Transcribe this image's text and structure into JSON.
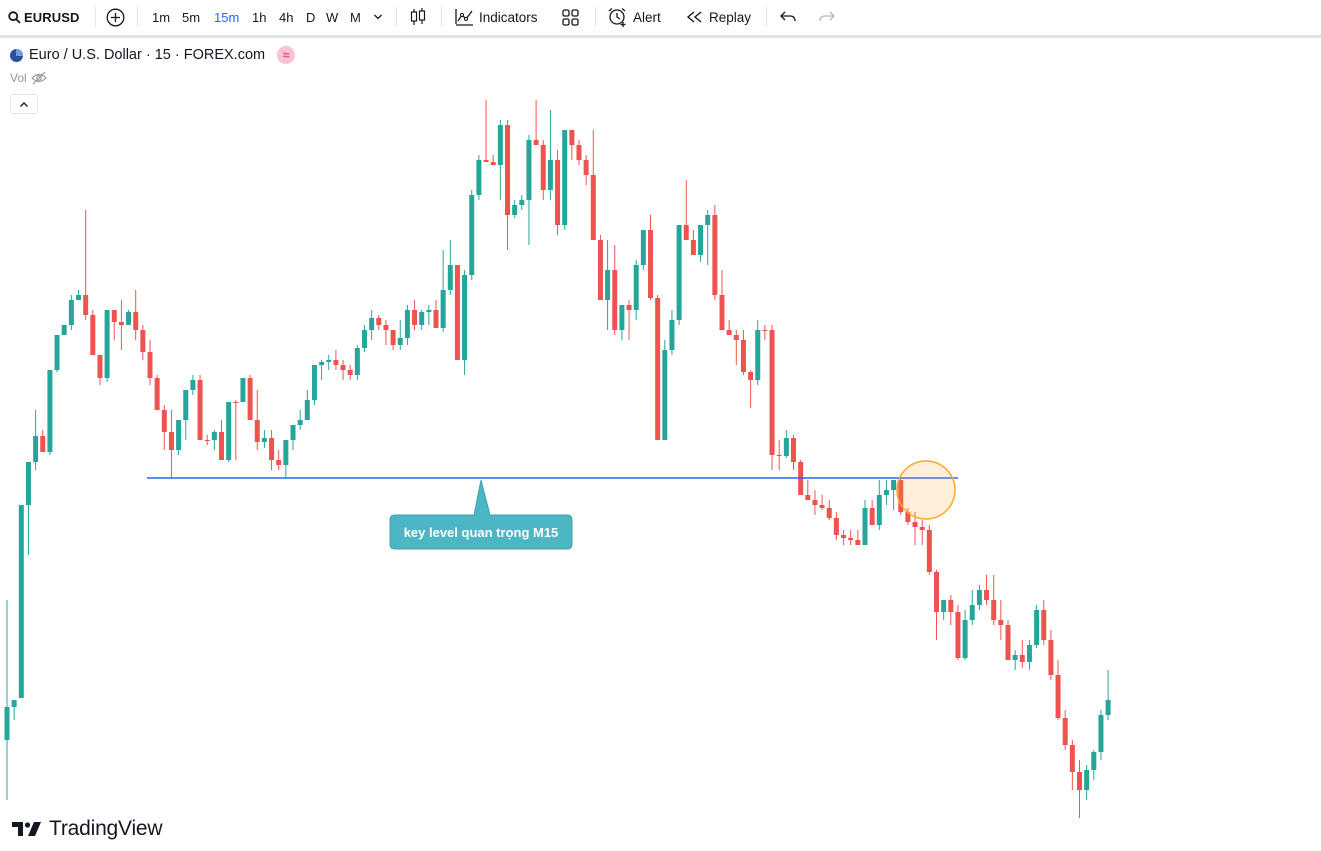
{
  "toolbar": {
    "symbol": "EURUSD",
    "intervals": [
      "1m",
      "5m",
      "15m",
      "1h",
      "4h",
      "D",
      "W",
      "M"
    ],
    "active_interval": "15m",
    "indicators_label": "Indicators",
    "alert_label": "Alert",
    "replay_label": "Replay"
  },
  "legend": {
    "title": "Euro / U.S. Dollar · 15 · FOREX.com",
    "vol_label": "Vol"
  },
  "annotation": {
    "label": "key level quan trọng  M15"
  },
  "branding": {
    "name": "TradingView"
  },
  "colors": {
    "up": "#26a69a",
    "down": "#ef5350",
    "level_line": "#2962ff",
    "callout": "#4db6c4",
    "highlight": "#ffa726",
    "active_interval": "#2962ff"
  },
  "chart_data": {
    "type": "candlestick",
    "key_level": 478,
    "candles": [
      [
        740,
        600,
        800,
        707
      ],
      [
        707,
        700,
        720,
        700
      ],
      [
        698,
        505,
        698,
        505
      ],
      [
        505,
        462,
        555,
        462
      ],
      [
        462,
        410,
        470,
        436
      ],
      [
        436,
        430,
        450,
        452
      ],
      [
        452,
        370,
        455,
        370
      ],
      [
        370,
        335,
        372,
        335
      ],
      [
        335,
        325,
        330,
        325
      ],
      [
        325,
        295,
        330,
        300
      ],
      [
        300,
        290,
        300,
        295
      ],
      [
        295,
        210,
        320,
        315
      ],
      [
        315,
        310,
        350,
        355
      ],
      [
        355,
        360,
        385,
        378
      ],
      [
        378,
        310,
        382,
        310
      ],
      [
        310,
        312,
        340,
        322
      ],
      [
        322,
        300,
        350,
        325
      ],
      [
        325,
        310,
        325,
        312
      ],
      [
        312,
        290,
        340,
        330
      ],
      [
        330,
        325,
        360,
        352
      ],
      [
        352,
        340,
        385,
        378
      ],
      [
        378,
        375,
        410,
        410
      ],
      [
        410,
        405,
        450,
        432
      ],
      [
        432,
        410,
        478,
        450
      ],
      [
        450,
        420,
        455,
        420
      ],
      [
        420,
        400,
        440,
        390
      ],
      [
        390,
        375,
        395,
        380
      ],
      [
        380,
        375,
        440,
        440
      ],
      [
        440,
        435,
        445,
        440
      ],
      [
        440,
        430,
        450,
        432
      ],
      [
        432,
        420,
        452,
        460
      ],
      [
        460,
        440,
        462,
        402
      ],
      [
        402,
        400,
        460,
        402
      ],
      [
        402,
        378,
        402,
        378
      ],
      [
        378,
        375,
        420,
        420
      ],
      [
        420,
        390,
        450,
        442
      ],
      [
        442,
        430,
        448,
        438
      ],
      [
        438,
        430,
        470,
        460
      ],
      [
        460,
        450,
        470,
        465
      ],
      [
        465,
        440,
        478,
        440
      ],
      [
        440,
        425,
        450,
        425
      ],
      [
        425,
        410,
        430,
        420
      ],
      [
        420,
        390,
        420,
        400
      ],
      [
        400,
        365,
        405,
        365
      ],
      [
        365,
        360,
        380,
        362
      ],
      [
        362,
        355,
        370,
        360
      ],
      [
        360,
        350,
        370,
        365
      ],
      [
        365,
        360,
        380,
        370
      ],
      [
        370,
        365,
        380,
        375
      ],
      [
        375,
        345,
        380,
        348
      ],
      [
        348,
        325,
        352,
        330
      ],
      [
        330,
        310,
        340,
        318
      ],
      [
        318,
        315,
        330,
        325
      ],
      [
        325,
        320,
        345,
        330
      ],
      [
        330,
        332,
        350,
        345
      ],
      [
        345,
        320,
        350,
        338
      ],
      [
        338,
        305,
        345,
        310
      ],
      [
        310,
        300,
        330,
        325
      ],
      [
        325,
        310,
        330,
        312
      ],
      [
        312,
        305,
        325,
        310
      ],
      [
        310,
        300,
        320,
        328
      ],
      [
        328,
        250,
        332,
        290
      ],
      [
        290,
        240,
        295,
        265
      ],
      [
        265,
        270,
        300,
        360
      ],
      [
        360,
        270,
        375,
        275
      ],
      [
        275,
        190,
        280,
        195
      ],
      [
        195,
        155,
        200,
        160
      ],
      [
        160,
        100,
        162,
        162
      ],
      [
        162,
        155,
        165,
        165
      ],
      [
        165,
        120,
        200,
        125
      ],
      [
        125,
        120,
        250,
        215
      ],
      [
        215,
        200,
        218,
        205
      ],
      [
        205,
        195,
        210,
        200
      ],
      [
        200,
        135,
        245,
        140
      ],
      [
        140,
        100,
        145,
        145
      ],
      [
        145,
        140,
        200,
        190
      ],
      [
        190,
        110,
        200,
        160
      ],
      [
        160,
        150,
        235,
        225
      ],
      [
        225,
        200,
        230,
        130
      ],
      [
        130,
        140,
        160,
        145
      ],
      [
        145,
        140,
        165,
        160
      ],
      [
        160,
        155,
        185,
        175
      ],
      [
        175,
        130,
        180,
        240
      ],
      [
        240,
        235,
        300,
        300
      ],
      [
        300,
        240,
        330,
        270
      ],
      [
        270,
        245,
        335,
        330
      ],
      [
        330,
        310,
        340,
        305
      ],
      [
        305,
        300,
        340,
        310
      ],
      [
        310,
        260,
        320,
        265
      ],
      [
        265,
        230,
        270,
        230
      ],
      [
        230,
        215,
        300,
        298
      ],
      [
        298,
        295,
        440,
        440
      ],
      [
        440,
        340,
        440,
        350
      ],
      [
        350,
        310,
        355,
        320
      ],
      [
        320,
        230,
        325,
        225
      ],
      [
        225,
        180,
        235,
        240
      ],
      [
        240,
        230,
        255,
        255
      ],
      [
        255,
        250,
        262,
        225
      ],
      [
        225,
        210,
        265,
        215
      ],
      [
        215,
        205,
        300,
        295
      ],
      [
        295,
        270,
        330,
        330
      ],
      [
        330,
        320,
        335,
        335
      ],
      [
        335,
        330,
        365,
        340
      ],
      [
        340,
        330,
        375,
        372
      ],
      [
        372,
        370,
        408,
        380
      ],
      [
        380,
        320,
        385,
        330
      ],
      [
        330,
        325,
        340,
        330
      ],
      [
        330,
        325,
        470,
        455
      ],
      [
        455,
        440,
        470,
        456
      ],
      [
        456,
        430,
        458,
        438
      ],
      [
        438,
        435,
        470,
        462
      ],
      [
        462,
        460,
        495,
        495
      ],
      [
        495,
        480,
        500,
        500
      ],
      [
        500,
        490,
        515,
        505
      ],
      [
        505,
        495,
        510,
        508
      ],
      [
        508,
        500,
        520,
        518
      ],
      [
        518,
        512,
        540,
        535
      ],
      [
        535,
        530,
        545,
        538
      ],
      [
        538,
        530,
        545,
        540
      ],
      [
        540,
        530,
        545,
        545
      ],
      [
        545,
        500,
        545,
        508
      ],
      [
        508,
        500,
        525,
        525
      ],
      [
        525,
        480,
        530,
        495
      ],
      [
        495,
        480,
        505,
        490
      ],
      [
        490,
        480,
        510,
        480
      ],
      [
        480,
        478,
        515,
        512
      ],
      [
        512,
        508,
        525,
        522
      ],
      [
        522,
        512,
        545,
        527
      ],
      [
        527,
        520,
        545,
        530
      ],
      [
        530,
        525,
        575,
        572
      ],
      [
        572,
        570,
        640,
        612
      ],
      [
        612,
        600,
        620,
        600
      ],
      [
        600,
        595,
        625,
        612
      ],
      [
        612,
        605,
        660,
        658
      ],
      [
        658,
        610,
        660,
        620
      ],
      [
        620,
        590,
        625,
        605
      ],
      [
        605,
        585,
        610,
        590
      ],
      [
        590,
        575,
        605,
        600
      ],
      [
        600,
        575,
        625,
        620
      ],
      [
        620,
        600,
        640,
        625
      ],
      [
        625,
        620,
        660,
        660
      ],
      [
        660,
        650,
        670,
        655
      ],
      [
        655,
        640,
        668,
        662
      ],
      [
        662,
        640,
        670,
        645
      ],
      [
        645,
        605,
        648,
        610
      ],
      [
        610,
        600,
        645,
        640
      ],
      [
        640,
        630,
        680,
        675
      ],
      [
        675,
        660,
        720,
        718
      ],
      [
        718,
        710,
        750,
        745
      ],
      [
        745,
        740,
        790,
        772
      ],
      [
        772,
        760,
        818,
        790
      ],
      [
        790,
        765,
        800,
        770
      ],
      [
        770,
        750,
        780,
        752
      ],
      [
        752,
        710,
        760,
        715
      ],
      [
        715,
        670,
        720,
        700
      ]
    ]
  }
}
